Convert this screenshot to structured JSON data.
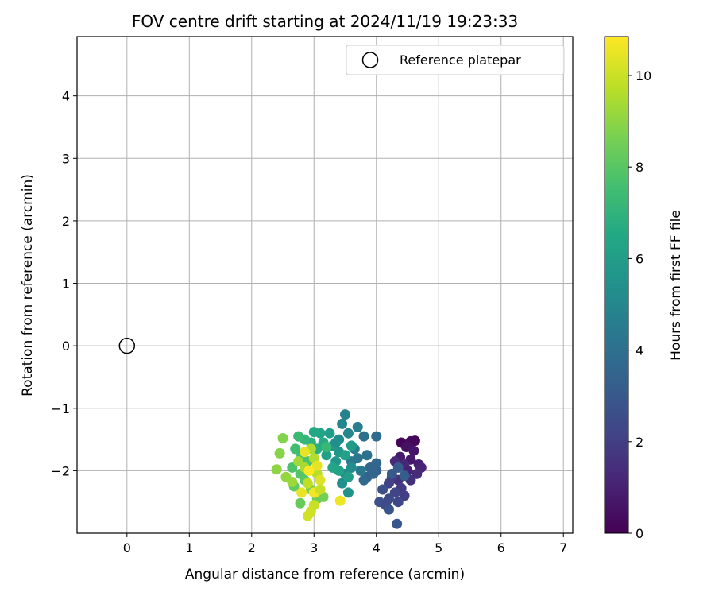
{
  "chart_data": {
    "type": "scatter",
    "title": "FOV centre drift starting at 2024/11/19 19:23:33",
    "xlabel": "Angular distance from reference (arcmin)",
    "ylabel": "Rotation from reference (arcmin)",
    "xlim": [
      -0.8,
      7.15
    ],
    "ylim": [
      -3.0,
      4.95
    ],
    "xticks": [
      0,
      1,
      2,
      3,
      4,
      5,
      6,
      7
    ],
    "xtick_labels": [
      "0",
      "1",
      "2",
      "3",
      "4",
      "5",
      "6",
      "7"
    ],
    "yticks": [
      -2,
      -1,
      0,
      1,
      2,
      3,
      4
    ],
    "ytick_labels": [
      "−2",
      "−1",
      "0",
      "1",
      "2",
      "3",
      "4"
    ],
    "grid": true,
    "legend": {
      "placement": "top-right",
      "entries": [
        "Reference platepar"
      ]
    },
    "reference_point": {
      "x": 0,
      "y": 0,
      "label": "Reference platepar"
    },
    "colorbar": {
      "label": "Hours from first FF file",
      "range": [
        0,
        10.85
      ],
      "ticks": [
        0,
        2,
        4,
        6,
        8,
        10
      ],
      "tick_labels": [
        "0",
        "2",
        "4",
        "6",
        "8",
        "10"
      ],
      "colormap": "viridis"
    },
    "points": [
      [
        4.4,
        -1.55,
        0.1
      ],
      [
        4.55,
        -1.53,
        0.3
      ],
      [
        4.62,
        -1.52,
        0.2
      ],
      [
        4.48,
        -1.62,
        0.5
      ],
      [
        4.6,
        -1.68,
        0.6
      ],
      [
        4.38,
        -1.78,
        0.8
      ],
      [
        4.55,
        -1.82,
        0.7
      ],
      [
        4.68,
        -1.9,
        0.9
      ],
      [
        4.72,
        -1.95,
        1.1
      ],
      [
        4.45,
        -1.9,
        1.2
      ],
      [
        4.3,
        -1.85,
        1.3
      ],
      [
        4.5,
        -2.0,
        1.0
      ],
      [
        4.65,
        -2.05,
        1.4
      ],
      [
        4.35,
        -2.15,
        1.6
      ],
      [
        4.55,
        -2.15,
        1.5
      ],
      [
        4.25,
        -2.1,
        1.8
      ],
      [
        4.4,
        -2.28,
        1.9
      ],
      [
        4.2,
        -2.2,
        2.1
      ],
      [
        4.3,
        -2.35,
        2.2
      ],
      [
        4.45,
        -2.4,
        2.0
      ],
      [
        4.35,
        -2.5,
        2.3
      ],
      [
        4.2,
        -2.45,
        2.4
      ],
      [
        4.1,
        -2.3,
        2.6
      ],
      [
        4.05,
        -2.5,
        2.7
      ],
      [
        4.15,
        -2.55,
        2.5
      ],
      [
        4.2,
        -2.62,
        2.8
      ],
      [
        4.33,
        -2.85,
        2.9
      ],
      [
        4.25,
        -2.05,
        3.0
      ],
      [
        4.35,
        -1.95,
        3.1
      ],
      [
        4.45,
        -2.08,
        3.2
      ],
      [
        4.0,
        -2.0,
        3.3
      ],
      [
        3.85,
        -2.1,
        3.4
      ],
      [
        3.9,
        -1.95,
        3.5
      ],
      [
        4.0,
        -1.88,
        3.6
      ],
      [
        3.8,
        -2.15,
        3.7
      ],
      [
        3.95,
        -2.05,
        3.5
      ],
      [
        4.0,
        -1.45,
        3.8
      ],
      [
        3.8,
        -1.45,
        4.0
      ],
      [
        3.85,
        -1.75,
        4.1
      ],
      [
        3.7,
        -1.8,
        4.2
      ],
      [
        3.75,
        -2.0,
        4.3
      ],
      [
        3.6,
        -1.85,
        4.4
      ],
      [
        3.65,
        -1.65,
        4.5
      ],
      [
        3.7,
        -1.3,
        4.6
      ],
      [
        3.5,
        -1.1,
        4.8
      ],
      [
        3.45,
        -1.25,
        4.9
      ],
      [
        3.55,
        -1.4,
        5.0
      ],
      [
        3.4,
        -1.5,
        5.1
      ],
      [
        3.6,
        -1.95,
        5.2
      ],
      [
        3.5,
        -2.05,
        5.3
      ],
      [
        3.45,
        -2.2,
        5.4
      ],
      [
        3.55,
        -2.35,
        5.5
      ],
      [
        3.4,
        -1.7,
        5.6
      ],
      [
        3.35,
        -1.85,
        5.7
      ],
      [
        3.3,
        -1.6,
        5.8
      ],
      [
        3.6,
        -1.6,
        5.9
      ],
      [
        3.25,
        -1.4,
        6.0
      ],
      [
        3.2,
        -1.75,
        6.1
      ],
      [
        3.5,
        -1.75,
        6.2
      ],
      [
        3.1,
        -1.4,
        6.3
      ],
      [
        3.0,
        -1.38,
        6.5
      ],
      [
        3.15,
        -1.55,
        6.6
      ],
      [
        3.05,
        -1.65,
        6.8
      ],
      [
        2.95,
        -1.55,
        6.9
      ],
      [
        3.4,
        -2.0,
        6.2
      ],
      [
        3.3,
        -1.95,
        6.4
      ],
      [
        3.55,
        -2.1,
        6.0
      ],
      [
        2.85,
        -1.5,
        7.1
      ],
      [
        2.75,
        -1.45,
        7.3
      ],
      [
        2.7,
        -1.65,
        7.5
      ],
      [
        2.8,
        -1.75,
        7.4
      ],
      [
        2.9,
        -1.85,
        7.7
      ],
      [
        2.65,
        -1.95,
        7.8
      ],
      [
        2.78,
        -2.05,
        7.9
      ],
      [
        2.85,
        -2.15,
        8.0
      ],
      [
        2.68,
        -2.25,
        8.2
      ],
      [
        2.78,
        -2.52,
        8.3
      ],
      [
        3.05,
        -2.45,
        8.4
      ],
      [
        3.15,
        -2.42,
        8.5
      ],
      [
        2.95,
        -2.3,
        8.6
      ],
      [
        2.5,
        -1.48,
        8.8
      ],
      [
        2.45,
        -1.72,
        8.9
      ],
      [
        2.4,
        -1.98,
        9.0
      ],
      [
        2.55,
        -2.1,
        9.1
      ],
      [
        2.65,
        -2.18,
        9.2
      ],
      [
        2.75,
        -1.85,
        9.3
      ],
      [
        2.85,
        -1.95,
        9.4
      ],
      [
        2.95,
        -1.65,
        9.5
      ],
      [
        3.0,
        -1.8,
        9.6
      ],
      [
        3.05,
        -2.05,
        9.7
      ],
      [
        2.9,
        -2.2,
        9.8
      ],
      [
        3.0,
        -2.55,
        9.9
      ],
      [
        2.95,
        -2.65,
        10.0
      ],
      [
        2.9,
        -2.72,
        10.1
      ],
      [
        3.02,
        -2.35,
        10.2
      ],
      [
        3.1,
        -2.15,
        10.3
      ],
      [
        3.05,
        -1.92,
        10.4
      ],
      [
        2.85,
        -1.7,
        10.5
      ],
      [
        3.42,
        -2.48,
        10.6
      ],
      [
        3.0,
        -2.35,
        10.7
      ],
      [
        2.92,
        -2.0,
        10.8
      ],
      [
        2.8,
        -2.35,
        10.5
      ],
      [
        3.1,
        -2.3,
        9.9
      ],
      [
        3.2,
        -1.62,
        7.2
      ],
      [
        3.35,
        -1.55,
        5.4
      ]
    ]
  }
}
